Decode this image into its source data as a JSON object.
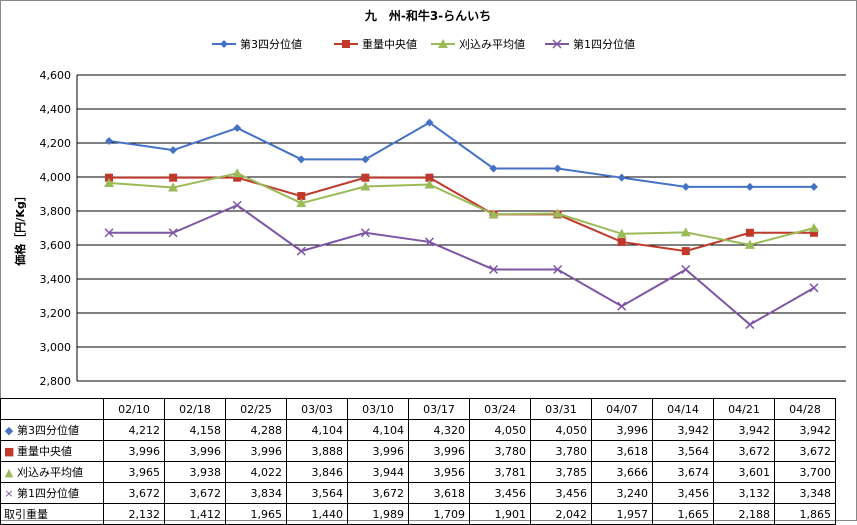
{
  "chart_data": {
    "type": "line",
    "title": "九　州-和牛3-らんいち",
    "ylabel": "価格［円/Kg］",
    "ylim": [
      2800,
      4600
    ],
    "ystep": 200,
    "grid": true,
    "legend_position": "top",
    "categories": [
      "02/10",
      "02/18",
      "02/25",
      "03/03",
      "03/10",
      "03/17",
      "03/24",
      "03/31",
      "04/07",
      "04/14",
      "04/21",
      "04/28"
    ],
    "series": [
      {
        "name": "第3四分位値",
        "color": "#4472C4",
        "marker": "diamond",
        "marker_text": "◆",
        "values": [
          4212,
          4158,
          4288,
          4104,
          4104,
          4320,
          4050,
          4050,
          3996,
          3942,
          3942,
          3942
        ]
      },
      {
        "name": "重量中央値",
        "color": "#C0392B",
        "marker": "square",
        "marker_text": "■",
        "values": [
          3996,
          3996,
          3996,
          3888,
          3996,
          3996,
          3780,
          3780,
          3618,
          3564,
          3672,
          3672
        ]
      },
      {
        "name": "刈込み平均値",
        "color": "#9BBB59",
        "marker": "triangle",
        "marker_text": "▲",
        "values": [
          3965,
          3938,
          4022,
          3846,
          3944,
          3956,
          3781,
          3785,
          3666,
          3674,
          3601,
          3700
        ]
      },
      {
        "name": "第1四分位値",
        "color": "#7E57A4",
        "marker": "x",
        "marker_text": "×",
        "values": [
          3672,
          3672,
          3834,
          3564,
          3672,
          3618,
          3456,
          3456,
          3240,
          3456,
          3132,
          3348
        ]
      }
    ],
    "extra_rows": [
      {
        "name": "取引重量",
        "values": [
          2132,
          1412,
          1965,
          1440,
          1989,
          1709,
          1901,
          2042,
          1957,
          1665,
          2188,
          1865
        ]
      }
    ]
  }
}
